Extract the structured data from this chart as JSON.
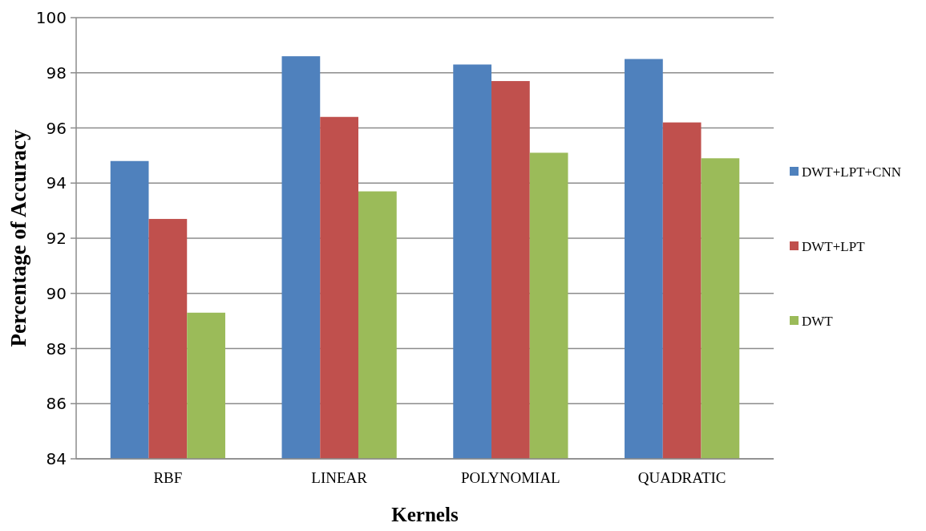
{
  "chart_data": {
    "type": "bar",
    "xlabel": "Kernels",
    "ylabel": "Percentage of Accuracy",
    "categories": [
      "RBF",
      "LINEAR",
      "POLYNOMIAL",
      "QUADRATIC"
    ],
    "series": [
      {
        "name": "DWT+LPT+CNN",
        "color": "#4f81bd",
        "values": [
          94.8,
          98.6,
          98.3,
          98.5
        ]
      },
      {
        "name": "DWT+LPT",
        "color": "#c0504d",
        "values": [
          92.7,
          96.4,
          97.7,
          96.2
        ]
      },
      {
        "name": "DWT",
        "color": "#9bbb59",
        "values": [
          89.3,
          93.7,
          95.1,
          94.9
        ]
      }
    ],
    "ylim": [
      84,
      100
    ],
    "yticks": [
      84,
      86,
      88,
      90,
      92,
      94,
      96,
      98,
      100
    ],
    "grid": "y",
    "legend": "right"
  }
}
